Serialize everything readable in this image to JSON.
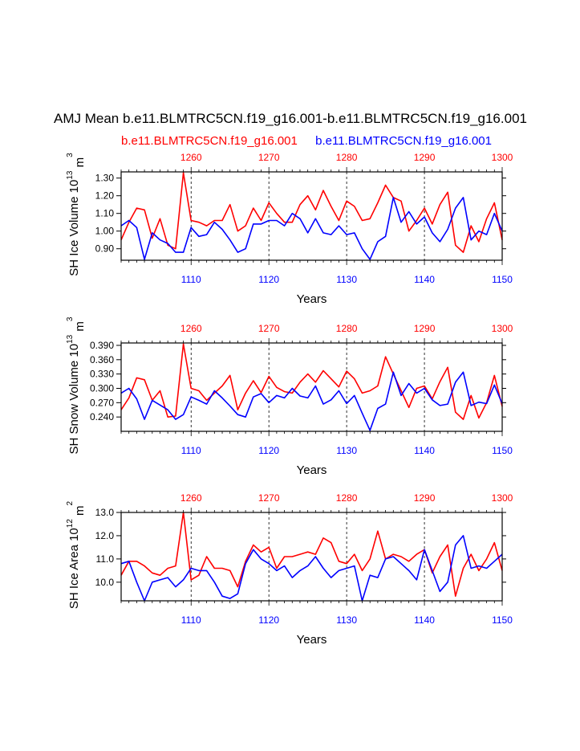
{
  "figure": {
    "title": "AMJ Mean b.e11.BLMTRC5CN.f19_g16.001-b.e11.BLMTRC5CN.f19_g16.001",
    "subtitle_left": "b.e11.BLMTRC5CN.f19_g16.001",
    "subtitle_right": "b.e11.BLMTRC5CN.f19_g16.001",
    "colors": {
      "top_series": "#ff0000",
      "bottom_series": "#0000ff",
      "grid": "#000000"
    }
  },
  "chart_data": [
    {
      "type": "line",
      "ylabel_main": "SH Ice Volume 10",
      "ylabel_sup": "13",
      "ylabel_unit": " m",
      "ylabel_unit_sup": "3",
      "xlabel": "Years",
      "ylim": [
        0.835,
        1.335
      ],
      "yticks": [
        "0.90",
        "1.00",
        "1.10",
        "1.20",
        "1.30"
      ],
      "ytick_values": [
        0.9,
        1.0,
        1.1,
        1.2,
        1.3
      ],
      "x_bottom": {
        "range": [
          1101,
          1150
        ],
        "ticks": [
          "1110",
          "1120",
          "1130",
          "1140",
          "1150"
        ],
        "color": "#0000ff"
      },
      "x_top": {
        "range": [
          1251,
          1300
        ],
        "ticks": [
          "1260",
          "1270",
          "1280",
          "1290",
          "1300"
        ],
        "color": "#ff0000"
      },
      "grid": "dashed vertical at decade ticks",
      "series": [
        {
          "axis": "top",
          "color": "#ff0000",
          "x_start": 1251,
          "values": [
            0.95,
            1.05,
            1.13,
            1.12,
            0.96,
            1.07,
            0.92,
            0.9,
            1.33,
            1.06,
            1.05,
            1.03,
            1.06,
            1.06,
            1.15,
            1.0,
            1.03,
            1.13,
            1.06,
            1.16,
            1.1,
            1.05,
            1.05,
            1.15,
            1.2,
            1.12,
            1.23,
            1.14,
            1.06,
            1.17,
            1.14,
            1.06,
            1.07,
            1.16,
            1.26,
            1.19,
            1.17,
            1.0,
            1.06,
            1.13,
            1.04,
            1.15,
            1.22,
            0.92,
            0.88,
            1.03,
            0.94,
            1.07,
            1.16,
            0.95
          ]
        },
        {
          "axis": "bottom",
          "color": "#0000ff",
          "x_start": 1101,
          "values": [
            1.03,
            1.06,
            1.02,
            0.84,
            0.99,
            0.95,
            0.93,
            0.88,
            0.88,
            1.02,
            0.97,
            0.98,
            1.05,
            1.01,
            0.95,
            0.88,
            0.9,
            1.04,
            1.04,
            1.06,
            1.06,
            1.03,
            1.1,
            1.07,
            0.99,
            1.07,
            0.99,
            0.98,
            1.03,
            0.98,
            0.99,
            0.9,
            0.84,
            0.94,
            0.97,
            1.19,
            1.05,
            1.11,
            1.04,
            1.08,
            0.99,
            0.94,
            1.01,
            1.13,
            1.19,
            0.95,
            1.0,
            0.98,
            1.1,
            1.0
          ]
        }
      ]
    },
    {
      "type": "line",
      "ylabel_main": "SH Snow Volume 10",
      "ylabel_sup": "13",
      "ylabel_unit": " m",
      "ylabel_unit_sup": "3",
      "xlabel": "Years",
      "ylim": [
        0.21,
        0.395
      ],
      "yticks": [
        "0.240",
        "0.270",
        "0.300",
        "0.330",
        "0.360",
        "0.390"
      ],
      "ytick_values": [
        0.24,
        0.27,
        0.3,
        0.33,
        0.36,
        0.39
      ],
      "x_bottom": {
        "range": [
          1101,
          1150
        ],
        "ticks": [
          "1110",
          "1120",
          "1130",
          "1140",
          "1150"
        ],
        "color": "#0000ff"
      },
      "x_top": {
        "range": [
          1251,
          1300
        ],
        "ticks": [
          "1260",
          "1270",
          "1280",
          "1290",
          "1300"
        ],
        "color": "#ff0000"
      },
      "grid": "dashed vertical at decade ticks",
      "series": [
        {
          "axis": "top",
          "color": "#ff0000",
          "x_start": 1251,
          "values": [
            0.255,
            0.28,
            0.322,
            0.318,
            0.275,
            0.295,
            0.24,
            0.242,
            0.393,
            0.3,
            0.295,
            0.275,
            0.29,
            0.305,
            0.327,
            0.255,
            0.29,
            0.316,
            0.291,
            0.325,
            0.302,
            0.293,
            0.29,
            0.313,
            0.33,
            0.313,
            0.337,
            0.32,
            0.303,
            0.336,
            0.32,
            0.29,
            0.295,
            0.305,
            0.366,
            0.33,
            0.295,
            0.26,
            0.3,
            0.305,
            0.278,
            0.314,
            0.344,
            0.25,
            0.235,
            0.285,
            0.238,
            0.27,
            0.327,
            0.262
          ]
        },
        {
          "axis": "bottom",
          "color": "#0000ff",
          "x_start": 1101,
          "values": [
            0.29,
            0.3,
            0.278,
            0.235,
            0.275,
            0.265,
            0.255,
            0.235,
            0.245,
            0.282,
            0.275,
            0.267,
            0.295,
            0.28,
            0.263,
            0.245,
            0.24,
            0.282,
            0.289,
            0.27,
            0.285,
            0.28,
            0.3,
            0.284,
            0.28,
            0.305,
            0.267,
            0.276,
            0.295,
            0.268,
            0.285,
            0.248,
            0.212,
            0.258,
            0.267,
            0.334,
            0.285,
            0.31,
            0.29,
            0.3,
            0.276,
            0.264,
            0.267,
            0.313,
            0.334,
            0.264,
            0.271,
            0.268,
            0.307,
            0.268
          ]
        }
      ]
    },
    {
      "type": "line",
      "ylabel_main": "SH Ice Area 10",
      "ylabel_sup": "12",
      "ylabel_unit": " m",
      "ylabel_unit_sup": "2",
      "xlabel": "Years",
      "ylim": [
        9.2,
        13.0
      ],
      "yticks": [
        "10.0",
        "11.0",
        "12.0",
        "13.0"
      ],
      "ytick_values": [
        10.0,
        11.0,
        12.0,
        13.0
      ],
      "x_bottom": {
        "range": [
          1101,
          1150
        ],
        "ticks": [
          "1110",
          "1120",
          "1130",
          "1140",
          "1150"
        ],
        "color": "#0000ff"
      },
      "x_top": {
        "range": [
          1251,
          1300
        ],
        "ticks": [
          "1260",
          "1270",
          "1280",
          "1290",
          "1300"
        ],
        "color": "#ff0000"
      },
      "grid": "dashed vertical at decade ticks",
      "series": [
        {
          "axis": "top",
          "color": "#ff0000",
          "x_start": 1251,
          "values": [
            10.3,
            10.9,
            10.9,
            10.7,
            10.4,
            10.3,
            10.6,
            10.7,
            13.0,
            10.1,
            10.3,
            11.1,
            10.6,
            10.6,
            10.5,
            9.8,
            10.9,
            11.6,
            11.3,
            11.5,
            10.6,
            11.1,
            11.1,
            11.2,
            11.3,
            11.2,
            11.9,
            11.7,
            10.9,
            10.8,
            11.2,
            10.5,
            11.0,
            12.2,
            11.0,
            11.2,
            11.1,
            10.9,
            11.2,
            11.4,
            10.4,
            11.1,
            11.6,
            9.4,
            10.6,
            11.2,
            10.5,
            11.0,
            11.7,
            10.5
          ]
        },
        {
          "axis": "bottom",
          "color": "#0000ff",
          "x_start": 1101,
          "values": [
            10.8,
            10.9,
            10.0,
            9.2,
            10.0,
            10.1,
            10.2,
            9.8,
            10.1,
            10.6,
            10.5,
            10.5,
            10.0,
            9.4,
            9.3,
            9.5,
            10.8,
            11.4,
            11.0,
            10.8,
            10.5,
            10.7,
            10.2,
            10.5,
            10.7,
            11.1,
            10.6,
            10.2,
            10.5,
            10.6,
            10.7,
            9.2,
            10.3,
            10.2,
            11.0,
            11.1,
            10.8,
            10.5,
            10.1,
            11.4,
            10.5,
            9.6,
            10.0,
            11.6,
            12.0,
            10.6,
            10.7,
            10.6,
            10.9,
            11.2
          ]
        }
      ]
    }
  ]
}
